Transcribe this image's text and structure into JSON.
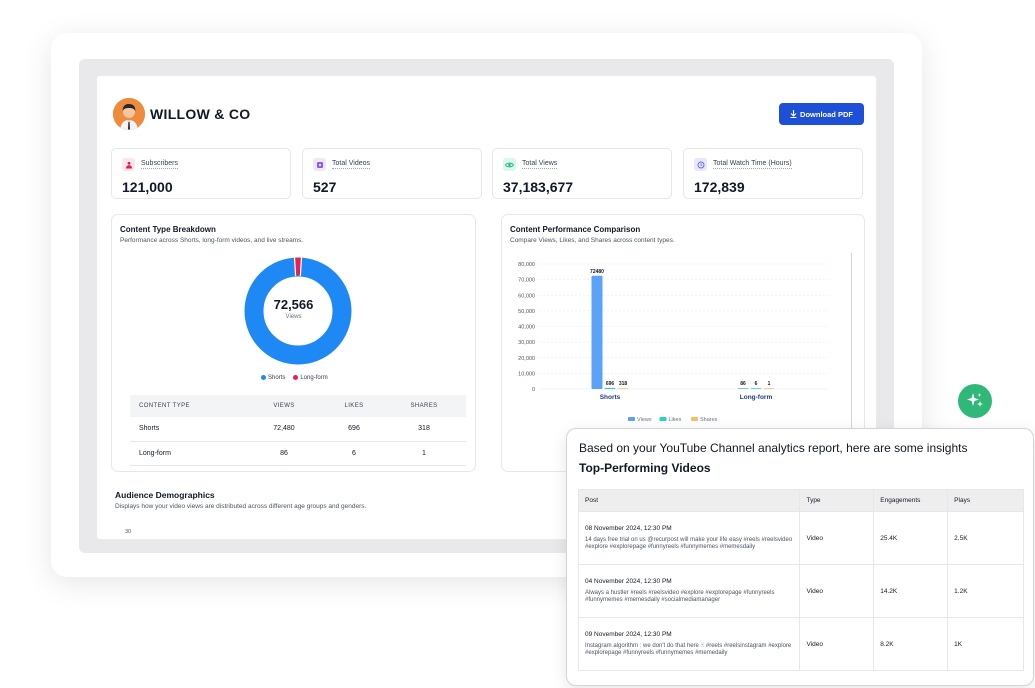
{
  "brand": {
    "name": "WILLOW & CO"
  },
  "header": {
    "download_label": "Download PDF",
    "download_icon": "download-icon"
  },
  "stats": [
    {
      "label": "Subscribers",
      "value": "121,000",
      "icon": "subscribers-icon",
      "color": "#e11d48",
      "bg": "#fde7ec"
    },
    {
      "label": "Total Videos",
      "value": "527",
      "icon": "video-icon",
      "color": "#8b5cf6",
      "bg": "#efe7fd"
    },
    {
      "label": "Total Views",
      "value": "37,183,677",
      "icon": "eye-icon",
      "color": "#10b981",
      "bg": "#dcf7ec"
    },
    {
      "label": "Total Watch Time (Hours)",
      "value": "172,839",
      "icon": "clock-icon",
      "color": "#6366f1",
      "bg": "#e7e8fd"
    }
  ],
  "content_breakdown": {
    "title": "Content Type Breakdown",
    "subtitle": "Performance across Shorts, long-form videos, and live streams.",
    "center_value": "72,566",
    "center_label": "Views",
    "legend": [
      {
        "name": "Shorts",
        "color": "#1e88f5"
      },
      {
        "name": "Long-form",
        "color": "#ec1f4f"
      }
    ],
    "table": {
      "headers": [
        "CONTENT TYPE",
        "VIEWS",
        "LIKES",
        "SHARES"
      ],
      "rows": [
        [
          "Shorts",
          "72,480",
          "696",
          "318"
        ],
        [
          "Long-form",
          "86",
          "6",
          "1"
        ]
      ]
    }
  },
  "performance": {
    "title": "Content Performance Comparison",
    "subtitle": "Compare Views, Likes, and Shares across content types."
  },
  "chart_data": {
    "type": "bar",
    "categories": [
      "Shorts",
      "Long-form"
    ],
    "series": [
      {
        "name": "Views",
        "values": [
          72480,
          86
        ],
        "color": "#5aa3f8"
      },
      {
        "name": "Likes",
        "values": [
          696,
          6
        ],
        "color": "#2dd4bf"
      },
      {
        "name": "Shares",
        "values": [
          318,
          1
        ],
        "color": "#fbbf5a"
      }
    ],
    "data_labels": [
      [
        "72480",
        "696",
        "318"
      ],
      [
        "86",
        "6",
        "1"
      ]
    ],
    "yticks": [
      "0",
      "10,000",
      "20,000",
      "30,000",
      "40,000",
      "50,000",
      "60,000",
      "70,000",
      "80,000"
    ],
    "ylim": [
      0,
      80000
    ],
    "grid": true,
    "legend_position": "bottom"
  },
  "audience": {
    "title": "Audience Demographics",
    "subtitle": "Displays how your video views are distributed across different age groups and genders.",
    "first_tick": "30"
  },
  "insights": {
    "intro": "Based on your YouTube Channel analytics report, here are some insights",
    "title": "Top-Performing Videos",
    "headers": [
      "Post",
      "Type",
      "Engagements",
      "Plays"
    ],
    "rows": [
      {
        "date": "08 November 2024, 12:30 PM",
        "text": "14 days free trial on us @recurpost will make your life easy #reels #reelsvideo #explore #explorepage #funnyreels #funnymemes #memesdaily",
        "type": "Video",
        "engagements": "25.4K",
        "plays": "2.5K"
      },
      {
        "date": "04 November 2024, 12:30 PM",
        "text": "Always a hustler #reels #reelsvideo #explore #explorepage #funnyreels #funnymemes #memesdaily #socialmediamanager",
        "type": "Video",
        "engagements": "14.2K",
        "plays": "1.2K"
      },
      {
        "date": "09 November 2024, 12:30 PM",
        "text": "Instagram algorithm : we don't do that here ☝ #reels #reelsinstagram #explore #explorepage #funnyreels #funnymemes #memedaily",
        "type": "Video",
        "engagements": "8.2K",
        "plays": "1K"
      }
    ]
  },
  "sparkle_icon": "sparkle-icon"
}
